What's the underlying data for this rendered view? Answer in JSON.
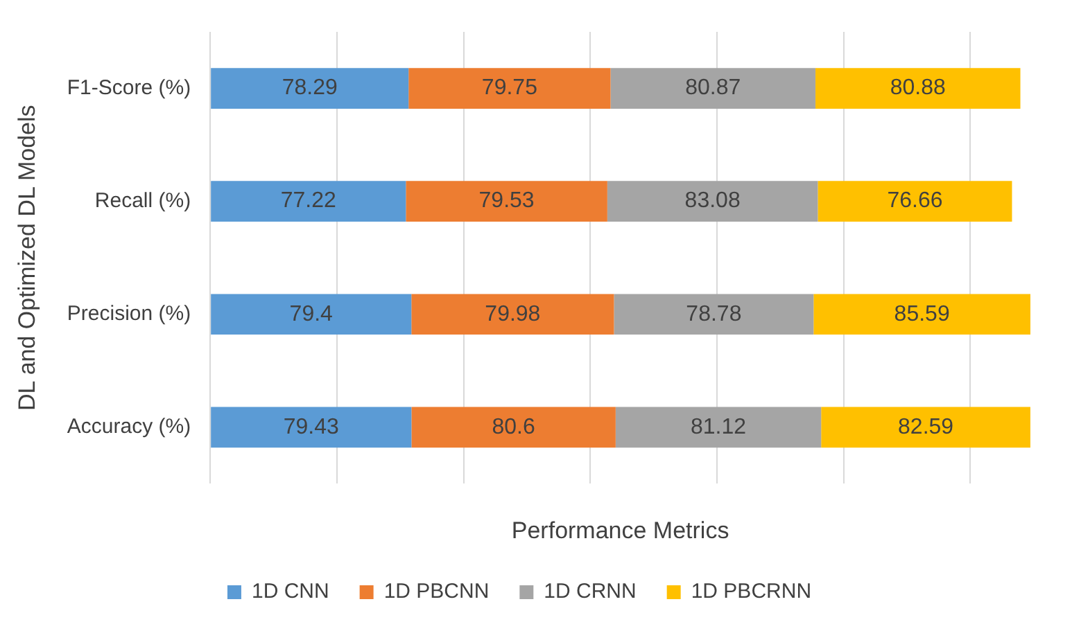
{
  "chart_data": {
    "type": "bar",
    "orientation": "horizontal",
    "stacked": true,
    "xlabel": "Performance Metrics",
    "ylabel": "DL and Optimized DL Models",
    "categories": [
      "F1-Score (%)",
      "Recall (%)",
      "Precision (%)",
      "Accuracy (%)"
    ],
    "series": [
      {
        "name": "1D CNN",
        "color": "#5b9bd5",
        "values": [
          78.29,
          77.22,
          79.4,
          79.43
        ]
      },
      {
        "name": "1D PBCNN",
        "color": "#ed7d31",
        "values": [
          79.75,
          79.53,
          79.98,
          80.6
        ]
      },
      {
        "name": "1D CRNN",
        "color": "#a5a5a5",
        "values": [
          80.87,
          83.08,
          78.78,
          81.12
        ]
      },
      {
        "name": "1D PBCRNN",
        "color": "#ffc000",
        "values": [
          80.88,
          76.66,
          85.59,
          82.59
        ]
      }
    ],
    "xticks": [
      {
        "value": 0,
        "label": null
      },
      {
        "value": 50,
        "label": null
      },
      {
        "value": 100,
        "label": null
      },
      {
        "value": 150,
        "label": null
      },
      {
        "value": 200,
        "label": null
      },
      {
        "value": 250,
        "label": null
      },
      {
        "value": 300,
        "label": null
      }
    ],
    "grid": "x",
    "legend": "bottom",
    "data_labels": true
  }
}
